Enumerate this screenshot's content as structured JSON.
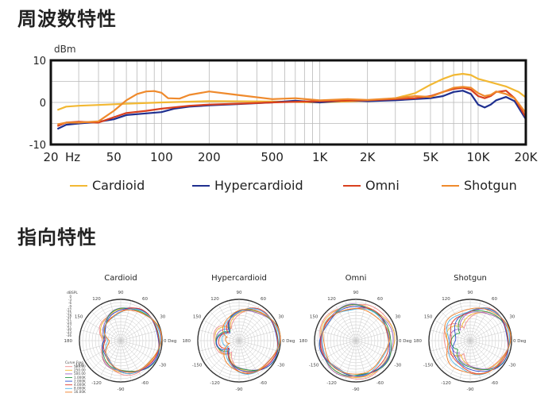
{
  "headings": {
    "frequency": "周波数特性",
    "directional": "指向特性"
  },
  "chart_data": [
    {
      "type": "line",
      "ylabel": "dBm",
      "xscale": "log",
      "xlim": [
        20,
        20000
      ],
      "ylim": [
        -10,
        10
      ],
      "yticks": [
        "10",
        "0",
        "-10"
      ],
      "xticks": [
        {
          "value": 20,
          "label": "20"
        },
        {
          "value": 50,
          "label": "50"
        },
        {
          "value": 100,
          "label": "100"
        },
        {
          "value": 200,
          "label": "200"
        },
        {
          "value": 500,
          "label": "500"
        },
        {
          "value": 1000,
          "label": "1K"
        },
        {
          "value": 2000,
          "label": "2K"
        },
        {
          "value": 5000,
          "label": "5K"
        },
        {
          "value": 10000,
          "label": "10K"
        },
        {
          "value": 20000,
          "label": "20K"
        }
      ],
      "xunit": "Hz",
      "grid": true,
      "legend_position": "bottom",
      "series": [
        {
          "name": "Cardioid",
          "color": "#f2b833",
          "points": [
            [
              22,
              -1.8
            ],
            [
              25,
              -1
            ],
            [
              30,
              -0.8
            ],
            [
              40,
              -0.6
            ],
            [
              60,
              -0.3
            ],
            [
              100,
              0
            ],
            [
              200,
              0.3
            ],
            [
              500,
              0.2
            ],
            [
              1000,
              0
            ],
            [
              2000,
              0.4
            ],
            [
              3000,
              1
            ],
            [
              4000,
              2.2
            ],
            [
              5000,
              4.2
            ],
            [
              6000,
              5.6
            ],
            [
              7000,
              6.5
            ],
            [
              8000,
              6.8
            ],
            [
              9000,
              6.5
            ],
            [
              10000,
              5.6
            ],
            [
              12000,
              4.8
            ],
            [
              15000,
              3.8
            ],
            [
              18000,
              2.5
            ],
            [
              20000,
              1.2
            ]
          ]
        },
        {
          "name": "Hypercardioid",
          "color": "#1f2f8f",
          "points": [
            [
              22,
              -6.3
            ],
            [
              25,
              -5.3
            ],
            [
              30,
              -5
            ],
            [
              40,
              -4.6
            ],
            [
              50,
              -4
            ],
            [
              60,
              -3
            ],
            [
              80,
              -2.6
            ],
            [
              100,
              -2.3
            ],
            [
              120,
              -1.5
            ],
            [
              150,
              -1
            ],
            [
              200,
              -0.7
            ],
            [
              300,
              -0.4
            ],
            [
              500,
              0
            ],
            [
              700,
              0.4
            ],
            [
              1000,
              0
            ],
            [
              1500,
              0.5
            ],
            [
              2000,
              0.3
            ],
            [
              3000,
              0.5
            ],
            [
              4000,
              0.8
            ],
            [
              5000,
              1
            ],
            [
              6000,
              1.5
            ],
            [
              7000,
              2.5
            ],
            [
              8000,
              2.8
            ],
            [
              9000,
              2
            ],
            [
              10000,
              -0.5
            ],
            [
              11000,
              -1.2
            ],
            [
              12000,
              -0.5
            ],
            [
              13000,
              0.5
            ],
            [
              15000,
              1.3
            ],
            [
              17000,
              0.3
            ],
            [
              20000,
              -4
            ]
          ]
        },
        {
          "name": "Omni",
          "color": "#d9401e",
          "points": [
            [
              22,
              -5.6
            ],
            [
              25,
              -4.8
            ],
            [
              30,
              -4.6
            ],
            [
              40,
              -4.8
            ],
            [
              50,
              -3.5
            ],
            [
              60,
              -2.5
            ],
            [
              80,
              -2
            ],
            [
              100,
              -1.5
            ],
            [
              150,
              -0.8
            ],
            [
              200,
              -0.5
            ],
            [
              300,
              -0.3
            ],
            [
              500,
              0
            ],
            [
              1000,
              0.3
            ],
            [
              2000,
              0.5
            ],
            [
              3000,
              0.8
            ],
            [
              4000,
              1
            ],
            [
              5000,
              1.5
            ],
            [
              6000,
              2.5
            ],
            [
              7000,
              3.2
            ],
            [
              8000,
              3.5
            ],
            [
              9000,
              3
            ],
            [
              10000,
              1.5
            ],
            [
              11000,
              1
            ],
            [
              12000,
              1.5
            ],
            [
              13000,
              2.5
            ],
            [
              15000,
              2.8
            ],
            [
              17000,
              1
            ],
            [
              20000,
              -3.5
            ]
          ]
        },
        {
          "name": "Shotgun",
          "color": "#ef8a2c",
          "points": [
            [
              22,
              -5.2
            ],
            [
              25,
              -4.8
            ],
            [
              30,
              -4.8
            ],
            [
              40,
              -4.5
            ],
            [
              50,
              -2
            ],
            [
              60,
              0.5
            ],
            [
              70,
              2
            ],
            [
              80,
              2.6
            ],
            [
              90,
              2.7
            ],
            [
              100,
              2.3
            ],
            [
              110,
              1
            ],
            [
              130,
              0.9
            ],
            [
              150,
              1.8
            ],
            [
              200,
              2.6
            ],
            [
              300,
              1.8
            ],
            [
              500,
              0.8
            ],
            [
              700,
              1
            ],
            [
              1000,
              0.5
            ],
            [
              1500,
              0.8
            ],
            [
              2000,
              0.6
            ],
            [
              3000,
              1
            ],
            [
              4000,
              1.5
            ],
            [
              5000,
              1.3
            ],
            [
              6000,
              2.5
            ],
            [
              7000,
              3.5
            ],
            [
              8000,
              3.7
            ],
            [
              9000,
              3.5
            ],
            [
              10000,
              2.2
            ],
            [
              11000,
              1.5
            ],
            [
              12000,
              1.8
            ],
            [
              13000,
              2.6
            ],
            [
              15000,
              2
            ],
            [
              17000,
              1
            ],
            [
              20000,
              -2.5
            ]
          ]
        }
      ]
    },
    {
      "type": "polar",
      "title": "Cardioid",
      "rings_label": "dBSPL",
      "ring_values": [
        "0",
        "-3",
        "-6",
        "-9",
        "-12",
        "-15",
        "-18",
        "-21",
        "-24",
        "-27",
        "-30",
        "-33",
        "-36"
      ],
      "angle_labels": [
        "0 Deg",
        "30",
        "60",
        "90",
        "120",
        "150",
        "180",
        "-150",
        "-120",
        "-90",
        "-60",
        "-30"
      ],
      "legend_header": [
        "Curve",
        "Freq"
      ],
      "frequencies": [
        "125.00",
        "250.00",
        "500.00",
        "1.000K",
        "2.000K",
        "4.000K",
        "8.000K",
        "16.00K"
      ],
      "curve_colors": [
        "#f28d8d",
        "#f2b833",
        "#a068c8",
        "#2a9a4a",
        "#2c4fcf",
        "#e23a2a",
        "#55b7e6",
        "#f07f28"
      ],
      "pattern": "cardioid"
    },
    {
      "type": "polar",
      "title": "Hypercardioid",
      "angle_labels": [
        "0 Deg",
        "30",
        "60",
        "90",
        "120",
        "150",
        "180",
        "-150",
        "-120",
        "-90",
        "-60",
        "-30"
      ],
      "curve_colors": [
        "#f28d8d",
        "#f2b833",
        "#a068c8",
        "#2a9a4a",
        "#2c4fcf",
        "#e23a2a",
        "#55b7e6",
        "#f07f28"
      ],
      "pattern": "hypercardioid"
    },
    {
      "type": "polar",
      "title": "Omni",
      "angle_labels": [
        "0 Deg",
        "30",
        "60",
        "90",
        "120",
        "150",
        "180",
        "-150",
        "-120",
        "-90",
        "-60",
        "-30"
      ],
      "curve_colors": [
        "#f28d8d",
        "#f2b833",
        "#a068c8",
        "#2a9a4a",
        "#2c4fcf",
        "#e23a2a",
        "#55b7e6",
        "#f07f28"
      ],
      "pattern": "omni"
    },
    {
      "type": "polar",
      "title": "Shotgun",
      "angle_labels": [
        "0 Deg",
        "30",
        "60",
        "90",
        "120",
        "150",
        "180",
        "-150",
        "-120",
        "-90",
        "-60",
        "-30"
      ],
      "curve_colors": [
        "#f28d8d",
        "#f2b833",
        "#a068c8",
        "#2a9a4a",
        "#2c4fcf",
        "#e23a2a",
        "#55b7e6",
        "#f07f28"
      ],
      "pattern": "shotgun"
    }
  ]
}
